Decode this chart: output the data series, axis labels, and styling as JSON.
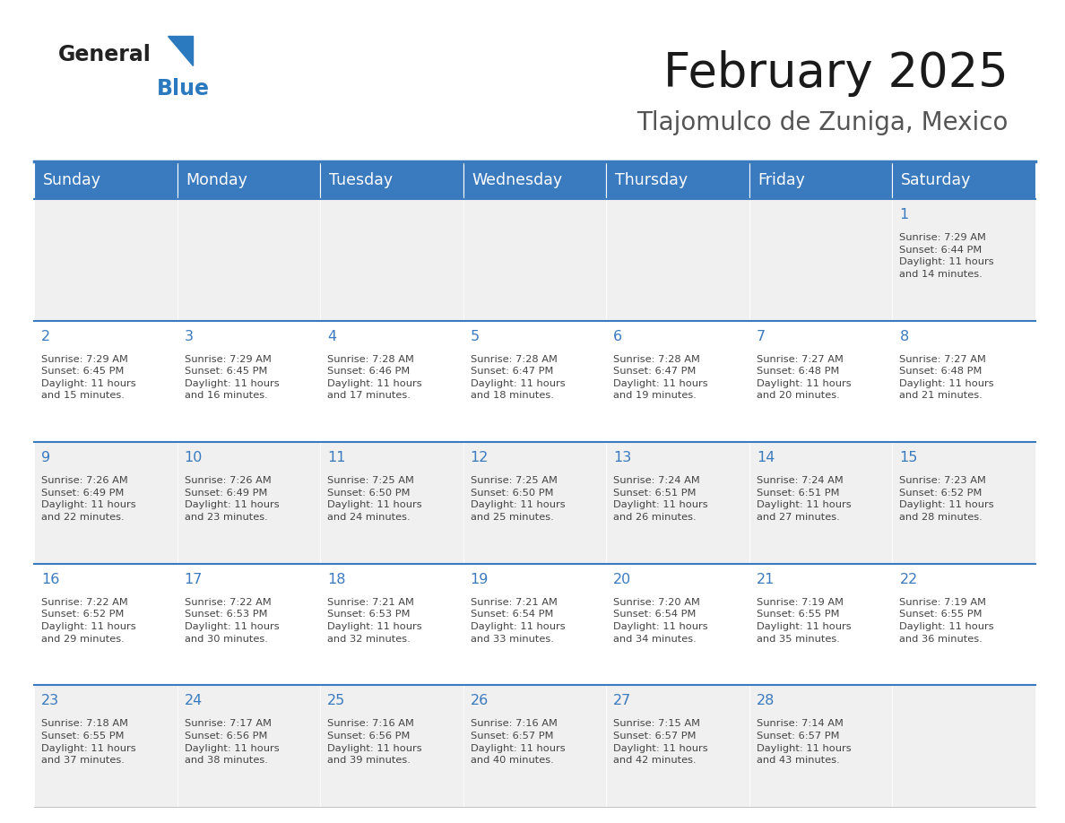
{
  "title": "February 2025",
  "subtitle": "Tlajomulco de Zuniga, Mexico",
  "header_color": "#3a7abf",
  "header_text_color": "#ffffff",
  "cell_bg_even": "#f0f0f0",
  "cell_bg_odd": "#ffffff",
  "day_text_color": "#3a7abf",
  "info_text_color": "#444444",
  "border_color": "#3a7abf",
  "logo_color_general": "#222222",
  "logo_color_blue": "#2b7abf",
  "days_of_week": [
    "Sunday",
    "Monday",
    "Tuesday",
    "Wednesday",
    "Thursday",
    "Friday",
    "Saturday"
  ],
  "weeks": [
    [
      {
        "day": "",
        "info": ""
      },
      {
        "day": "",
        "info": ""
      },
      {
        "day": "",
        "info": ""
      },
      {
        "day": "",
        "info": ""
      },
      {
        "day": "",
        "info": ""
      },
      {
        "day": "",
        "info": ""
      },
      {
        "day": "1",
        "info": "Sunrise: 7:29 AM\nSunset: 6:44 PM\nDaylight: 11 hours\nand 14 minutes."
      }
    ],
    [
      {
        "day": "2",
        "info": "Sunrise: 7:29 AM\nSunset: 6:45 PM\nDaylight: 11 hours\nand 15 minutes."
      },
      {
        "day": "3",
        "info": "Sunrise: 7:29 AM\nSunset: 6:45 PM\nDaylight: 11 hours\nand 16 minutes."
      },
      {
        "day": "4",
        "info": "Sunrise: 7:28 AM\nSunset: 6:46 PM\nDaylight: 11 hours\nand 17 minutes."
      },
      {
        "day": "5",
        "info": "Sunrise: 7:28 AM\nSunset: 6:47 PM\nDaylight: 11 hours\nand 18 minutes."
      },
      {
        "day": "6",
        "info": "Sunrise: 7:28 AM\nSunset: 6:47 PM\nDaylight: 11 hours\nand 19 minutes."
      },
      {
        "day": "7",
        "info": "Sunrise: 7:27 AM\nSunset: 6:48 PM\nDaylight: 11 hours\nand 20 minutes."
      },
      {
        "day": "8",
        "info": "Sunrise: 7:27 AM\nSunset: 6:48 PM\nDaylight: 11 hours\nand 21 minutes."
      }
    ],
    [
      {
        "day": "9",
        "info": "Sunrise: 7:26 AM\nSunset: 6:49 PM\nDaylight: 11 hours\nand 22 minutes."
      },
      {
        "day": "10",
        "info": "Sunrise: 7:26 AM\nSunset: 6:49 PM\nDaylight: 11 hours\nand 23 minutes."
      },
      {
        "day": "11",
        "info": "Sunrise: 7:25 AM\nSunset: 6:50 PM\nDaylight: 11 hours\nand 24 minutes."
      },
      {
        "day": "12",
        "info": "Sunrise: 7:25 AM\nSunset: 6:50 PM\nDaylight: 11 hours\nand 25 minutes."
      },
      {
        "day": "13",
        "info": "Sunrise: 7:24 AM\nSunset: 6:51 PM\nDaylight: 11 hours\nand 26 minutes."
      },
      {
        "day": "14",
        "info": "Sunrise: 7:24 AM\nSunset: 6:51 PM\nDaylight: 11 hours\nand 27 minutes."
      },
      {
        "day": "15",
        "info": "Sunrise: 7:23 AM\nSunset: 6:52 PM\nDaylight: 11 hours\nand 28 minutes."
      }
    ],
    [
      {
        "day": "16",
        "info": "Sunrise: 7:22 AM\nSunset: 6:52 PM\nDaylight: 11 hours\nand 29 minutes."
      },
      {
        "day": "17",
        "info": "Sunrise: 7:22 AM\nSunset: 6:53 PM\nDaylight: 11 hours\nand 30 minutes."
      },
      {
        "day": "18",
        "info": "Sunrise: 7:21 AM\nSunset: 6:53 PM\nDaylight: 11 hours\nand 32 minutes."
      },
      {
        "day": "19",
        "info": "Sunrise: 7:21 AM\nSunset: 6:54 PM\nDaylight: 11 hours\nand 33 minutes."
      },
      {
        "day": "20",
        "info": "Sunrise: 7:20 AM\nSunset: 6:54 PM\nDaylight: 11 hours\nand 34 minutes."
      },
      {
        "day": "21",
        "info": "Sunrise: 7:19 AM\nSunset: 6:55 PM\nDaylight: 11 hours\nand 35 minutes."
      },
      {
        "day": "22",
        "info": "Sunrise: 7:19 AM\nSunset: 6:55 PM\nDaylight: 11 hours\nand 36 minutes."
      }
    ],
    [
      {
        "day": "23",
        "info": "Sunrise: 7:18 AM\nSunset: 6:55 PM\nDaylight: 11 hours\nand 37 minutes."
      },
      {
        "day": "24",
        "info": "Sunrise: 7:17 AM\nSunset: 6:56 PM\nDaylight: 11 hours\nand 38 minutes."
      },
      {
        "day": "25",
        "info": "Sunrise: 7:16 AM\nSunset: 6:56 PM\nDaylight: 11 hours\nand 39 minutes."
      },
      {
        "day": "26",
        "info": "Sunrise: 7:16 AM\nSunset: 6:57 PM\nDaylight: 11 hours\nand 40 minutes."
      },
      {
        "day": "27",
        "info": "Sunrise: 7:15 AM\nSunset: 6:57 PM\nDaylight: 11 hours\nand 42 minutes."
      },
      {
        "day": "28",
        "info": "Sunrise: 7:14 AM\nSunset: 6:57 PM\nDaylight: 11 hours\nand 43 minutes."
      },
      {
        "day": "",
        "info": ""
      }
    ]
  ]
}
